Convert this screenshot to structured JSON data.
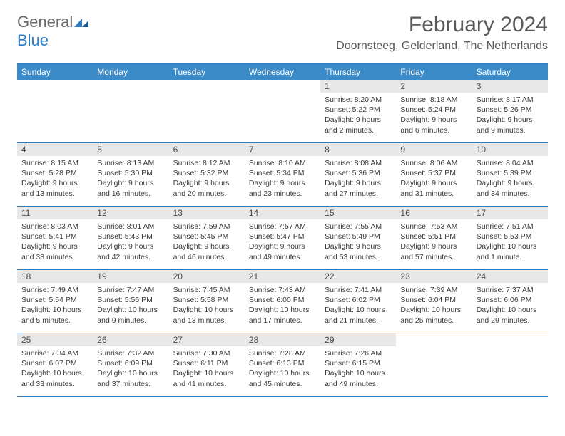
{
  "logo": {
    "text1": "General",
    "text2": "Blue"
  },
  "title": "February 2024",
  "location": "Doornsteeg, Gelderland, The Netherlands",
  "colors": {
    "accent": "#2d7bc0",
    "header_bg": "#3b8bc9",
    "daynum_bg": "#e8e8e8",
    "text": "#333333",
    "title_text": "#5a5a5a"
  },
  "weekdays": [
    "Sunday",
    "Monday",
    "Tuesday",
    "Wednesday",
    "Thursday",
    "Friday",
    "Saturday"
  ],
  "weeks": [
    [
      null,
      null,
      null,
      null,
      {
        "n": "1",
        "sunrise": "8:20 AM",
        "sunset": "5:22 PM",
        "daylight": "9 hours and 2 minutes."
      },
      {
        "n": "2",
        "sunrise": "8:18 AM",
        "sunset": "5:24 PM",
        "daylight": "9 hours and 6 minutes."
      },
      {
        "n": "3",
        "sunrise": "8:17 AM",
        "sunset": "5:26 PM",
        "daylight": "9 hours and 9 minutes."
      }
    ],
    [
      {
        "n": "4",
        "sunrise": "8:15 AM",
        "sunset": "5:28 PM",
        "daylight": "9 hours and 13 minutes."
      },
      {
        "n": "5",
        "sunrise": "8:13 AM",
        "sunset": "5:30 PM",
        "daylight": "9 hours and 16 minutes."
      },
      {
        "n": "6",
        "sunrise": "8:12 AM",
        "sunset": "5:32 PM",
        "daylight": "9 hours and 20 minutes."
      },
      {
        "n": "7",
        "sunrise": "8:10 AM",
        "sunset": "5:34 PM",
        "daylight": "9 hours and 23 minutes."
      },
      {
        "n": "8",
        "sunrise": "8:08 AM",
        "sunset": "5:36 PM",
        "daylight": "9 hours and 27 minutes."
      },
      {
        "n": "9",
        "sunrise": "8:06 AM",
        "sunset": "5:37 PM",
        "daylight": "9 hours and 31 minutes."
      },
      {
        "n": "10",
        "sunrise": "8:04 AM",
        "sunset": "5:39 PM",
        "daylight": "9 hours and 34 minutes."
      }
    ],
    [
      {
        "n": "11",
        "sunrise": "8:03 AM",
        "sunset": "5:41 PM",
        "daylight": "9 hours and 38 minutes."
      },
      {
        "n": "12",
        "sunrise": "8:01 AM",
        "sunset": "5:43 PM",
        "daylight": "9 hours and 42 minutes."
      },
      {
        "n": "13",
        "sunrise": "7:59 AM",
        "sunset": "5:45 PM",
        "daylight": "9 hours and 46 minutes."
      },
      {
        "n": "14",
        "sunrise": "7:57 AM",
        "sunset": "5:47 PM",
        "daylight": "9 hours and 49 minutes."
      },
      {
        "n": "15",
        "sunrise": "7:55 AM",
        "sunset": "5:49 PM",
        "daylight": "9 hours and 53 minutes."
      },
      {
        "n": "16",
        "sunrise": "7:53 AM",
        "sunset": "5:51 PM",
        "daylight": "9 hours and 57 minutes."
      },
      {
        "n": "17",
        "sunrise": "7:51 AM",
        "sunset": "5:53 PM",
        "daylight": "10 hours and 1 minute."
      }
    ],
    [
      {
        "n": "18",
        "sunrise": "7:49 AM",
        "sunset": "5:54 PM",
        "daylight": "10 hours and 5 minutes."
      },
      {
        "n": "19",
        "sunrise": "7:47 AM",
        "sunset": "5:56 PM",
        "daylight": "10 hours and 9 minutes."
      },
      {
        "n": "20",
        "sunrise": "7:45 AM",
        "sunset": "5:58 PM",
        "daylight": "10 hours and 13 minutes."
      },
      {
        "n": "21",
        "sunrise": "7:43 AM",
        "sunset": "6:00 PM",
        "daylight": "10 hours and 17 minutes."
      },
      {
        "n": "22",
        "sunrise": "7:41 AM",
        "sunset": "6:02 PM",
        "daylight": "10 hours and 21 minutes."
      },
      {
        "n": "23",
        "sunrise": "7:39 AM",
        "sunset": "6:04 PM",
        "daylight": "10 hours and 25 minutes."
      },
      {
        "n": "24",
        "sunrise": "7:37 AM",
        "sunset": "6:06 PM",
        "daylight": "10 hours and 29 minutes."
      }
    ],
    [
      {
        "n": "25",
        "sunrise": "7:34 AM",
        "sunset": "6:07 PM",
        "daylight": "10 hours and 33 minutes."
      },
      {
        "n": "26",
        "sunrise": "7:32 AM",
        "sunset": "6:09 PM",
        "daylight": "10 hours and 37 minutes."
      },
      {
        "n": "27",
        "sunrise": "7:30 AM",
        "sunset": "6:11 PM",
        "daylight": "10 hours and 41 minutes."
      },
      {
        "n": "28",
        "sunrise": "7:28 AM",
        "sunset": "6:13 PM",
        "daylight": "10 hours and 45 minutes."
      },
      {
        "n": "29",
        "sunrise": "7:26 AM",
        "sunset": "6:15 PM",
        "daylight": "10 hours and 49 minutes."
      },
      null,
      null
    ]
  ],
  "labels": {
    "sunrise": "Sunrise:",
    "sunset": "Sunset:",
    "daylight": "Daylight:"
  }
}
